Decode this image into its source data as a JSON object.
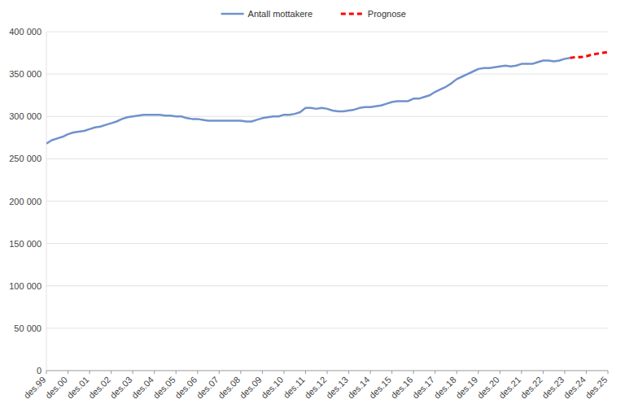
{
  "chart_data": {
    "type": "line",
    "categories": [
      "des.99",
      null,
      null,
      null,
      "des.00",
      null,
      null,
      null,
      "des.01",
      null,
      null,
      null,
      "des.02",
      null,
      null,
      null,
      "des.03",
      null,
      null,
      null,
      "des.04",
      null,
      null,
      null,
      "des.05",
      null,
      null,
      null,
      "des.06",
      null,
      null,
      null,
      "des.07",
      null,
      null,
      null,
      "des.08",
      null,
      null,
      null,
      "des.09",
      null,
      null,
      null,
      "des.10",
      null,
      null,
      null,
      "des.11",
      null,
      null,
      null,
      "des.12",
      null,
      null,
      null,
      "des.13",
      null,
      null,
      null,
      "des.14",
      null,
      null,
      null,
      "des.15",
      null,
      null,
      null,
      "des.16",
      null,
      null,
      null,
      "des.17",
      null,
      null,
      null,
      "des.18",
      null,
      null,
      null,
      "des.19",
      null,
      null,
      null,
      "des.20",
      null,
      null,
      null,
      "des.21",
      null,
      null,
      null,
      "des.22",
      null,
      null,
      null,
      "des.23",
      null,
      null,
      null,
      "des.24",
      null,
      null,
      null,
      "des.25"
    ],
    "series": [
      {
        "name": "Antall mottakere",
        "color": "#7092cc",
        "line_style": "solid",
        "values": [
          268000,
          272000,
          274000,
          276000,
          279000,
          281000,
          282000,
          283000,
          285000,
          287000,
          288000,
          290000,
          292000,
          294000,
          297000,
          299000,
          300000,
          301000,
          302000,
          302000,
          302000,
          302000,
          301000,
          301000,
          300000,
          300000,
          298000,
          297000,
          297000,
          296000,
          295000,
          295000,
          295000,
          295000,
          295000,
          295000,
          295000,
          294000,
          294000,
          296000,
          298000,
          299000,
          300000,
          300000,
          302000,
          302000,
          303000,
          305000,
          310000,
          310000,
          309000,
          310000,
          309000,
          307000,
          306000,
          306000,
          307000,
          308000,
          310000,
          311000,
          311000,
          312000,
          313000,
          315000,
          317000,
          318000,
          318000,
          318000,
          321000,
          321000,
          323000,
          325000,
          329000,
          332000,
          335000,
          339000,
          344000,
          347000,
          350000,
          353000,
          356000,
          357000,
          357000,
          358000,
          359000,
          360000,
          359000,
          360000,
          362000,
          362000,
          362000,
          364000,
          366000,
          366000,
          365000,
          366000,
          368000,
          369000,
          null,
          null,
          null,
          null,
          null,
          null,
          null
        ]
      },
      {
        "name": "Prognose",
        "color": "#ff0000",
        "line_style": "dashed",
        "values": [
          null,
          null,
          null,
          null,
          null,
          null,
          null,
          null,
          null,
          null,
          null,
          null,
          null,
          null,
          null,
          null,
          null,
          null,
          null,
          null,
          null,
          null,
          null,
          null,
          null,
          null,
          null,
          null,
          null,
          null,
          null,
          null,
          null,
          null,
          null,
          null,
          null,
          null,
          null,
          null,
          null,
          null,
          null,
          null,
          null,
          null,
          null,
          null,
          null,
          null,
          null,
          null,
          null,
          null,
          null,
          null,
          null,
          null,
          null,
          null,
          null,
          null,
          null,
          null,
          null,
          null,
          null,
          null,
          null,
          null,
          null,
          null,
          null,
          null,
          null,
          null,
          null,
          null,
          null,
          null,
          null,
          null,
          null,
          null,
          null,
          null,
          null,
          null,
          null,
          null,
          null,
          null,
          null,
          null,
          null,
          null,
          null,
          369000,
          370000,
          370000,
          371000,
          373000,
          374000,
          375000,
          376000
        ]
      }
    ],
    "ylim": [
      0,
      400000
    ],
    "yticks": [
      0,
      {
        "value": 50000,
        "label": "50 000"
      },
      {
        "value": 100000,
        "label": "100 000"
      },
      {
        "value": 150000,
        "label": "150 000"
      },
      {
        "value": 200000,
        "label": "200 000"
      },
      {
        "value": 250000,
        "label": "250 000"
      },
      {
        "value": 300000,
        "label": "300 000"
      },
      {
        "value": 350000,
        "label": "350 000"
      },
      {
        "value": 400000,
        "label": "400 000"
      }
    ],
    "grid": true,
    "legend": "top"
  }
}
